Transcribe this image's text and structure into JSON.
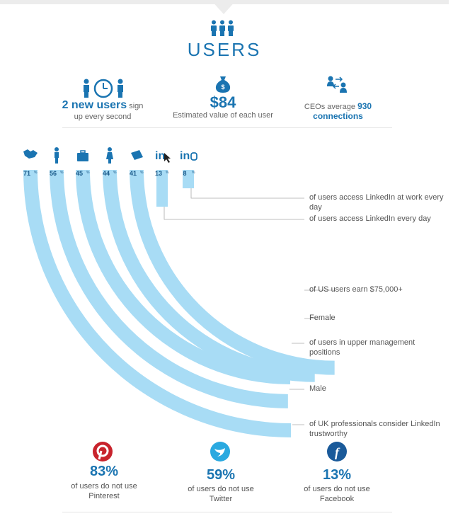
{
  "header": {
    "title": "USERS"
  },
  "stats": {
    "new_users_bold": "2 new users",
    "new_users_rest1": " sign",
    "new_users_rest2": "up every second",
    "value": "$84",
    "value_label": "Estimated value of each user",
    "ceo_prefix": "CEOs average ",
    "ceo_bold_num": "930",
    "ceo_bold_rest": "connections"
  },
  "chart_data": {
    "type": "arc-bars",
    "unit": "%",
    "series": [
      {
        "icon": "handshake-icon",
        "value": 71,
        "label": "71",
        "desc1": "of UK professionals consider LinkedIn",
        "desc2": "trustworthy"
      },
      {
        "icon": "man-icon",
        "value": 56,
        "label": "56",
        "desc1": "Male",
        "desc2": ""
      },
      {
        "icon": "briefcase-icon",
        "value": 45,
        "label": "45",
        "desc1": "of users in upper management",
        "desc2": "positions"
      },
      {
        "icon": "woman-icon",
        "value": 44,
        "label": "44",
        "desc1": "Female",
        "desc2": ""
      },
      {
        "icon": "money-icon",
        "value": 41,
        "label": "41",
        "desc1": "of US users earn $75,000+",
        "desc2": ""
      },
      {
        "icon": "linkedin-cursor-icon",
        "value": 13,
        "label": "13",
        "desc1": "of users access LinkedIn every day",
        "desc2": ""
      },
      {
        "icon": "linkedin-work-icon",
        "value": 8,
        "label": "8",
        "desc1": "of users access LinkedIn at work every day",
        "desc2": ""
      }
    ]
  },
  "social": [
    {
      "icon": "pinterest-icon",
      "pct": "83%",
      "line1": "of users do not use",
      "line2": "Pinterest",
      "color": "#c8232c"
    },
    {
      "icon": "twitter-icon",
      "pct": "59%",
      "line1": "of users do not use",
      "line2": "Twitter",
      "color": "#2aa9e0"
    },
    {
      "icon": "facebook-icon",
      "pct": "13%",
      "line1": "of users do not use",
      "line2": "Facebook",
      "color": "#1a5a9a"
    }
  ],
  "colors": {
    "accent": "#1a74b1",
    "bar": "#a8dcf5"
  }
}
